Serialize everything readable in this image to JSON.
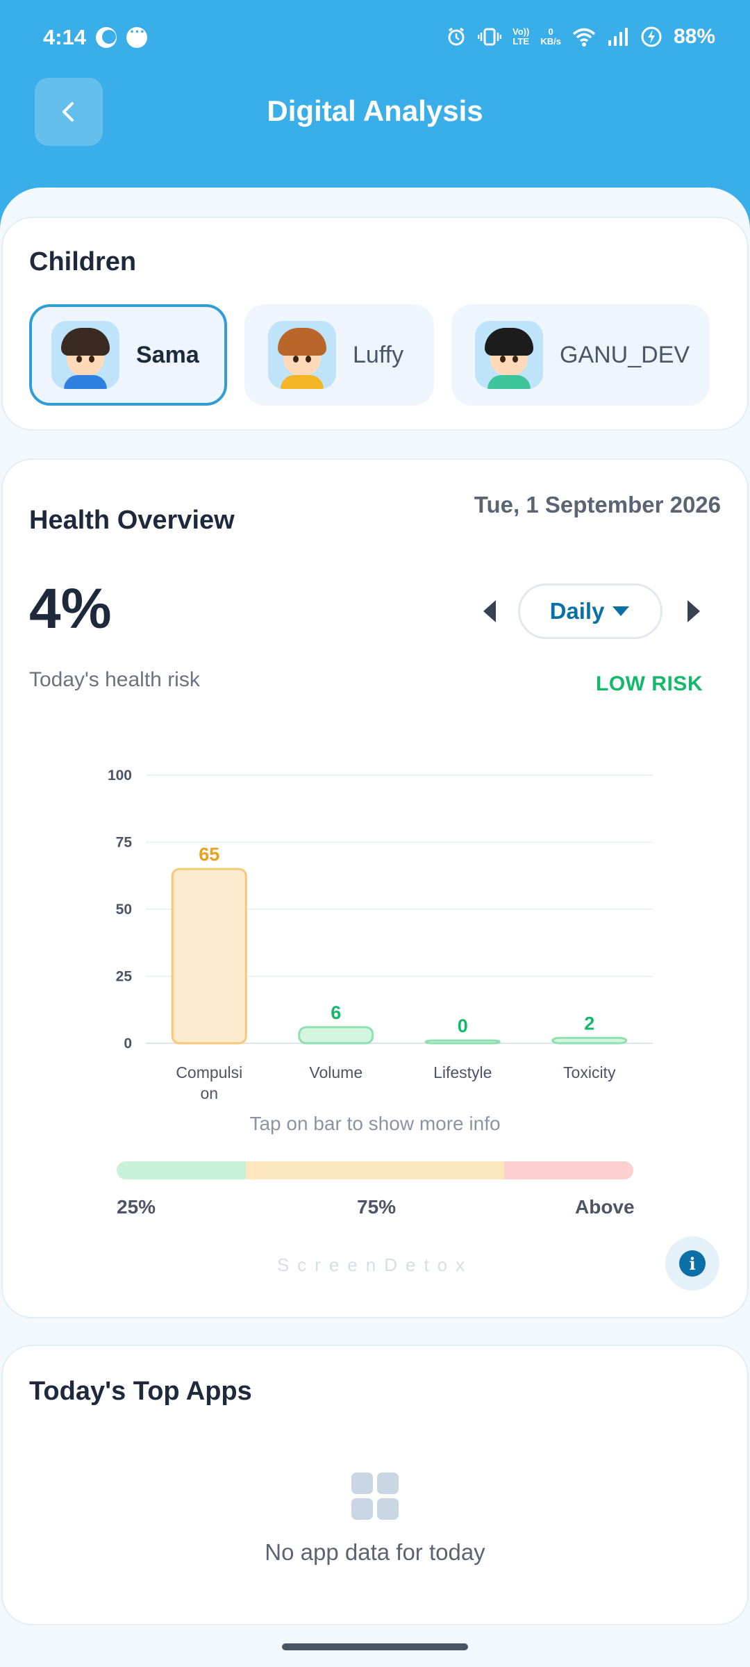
{
  "status_bar": {
    "time": "4:14",
    "network_speed_top": "0",
    "network_speed_bottom": "KB/s",
    "volte_top": "Vo))",
    "volte_bottom": "LTE",
    "battery": "88%"
  },
  "header": {
    "title": "Digital Analysis",
    "back_icon": "chevron-left-icon"
  },
  "children": {
    "heading": "Children",
    "items": [
      {
        "name": "Sama",
        "selected": true
      },
      {
        "name": "Luffy",
        "selected": false
      },
      {
        "name": "GANU_DEV",
        "selected": false
      }
    ]
  },
  "health": {
    "heading": "Health Overview",
    "date": "Tue, 1 September 2026",
    "risk_percent": "4%",
    "risk_subtitle": "Today's health risk",
    "risk_level": "LOW RISK",
    "period": "Daily",
    "hint": "Tap on bar to show more info",
    "scale_labels": [
      "25%",
      "75%",
      "Above"
    ],
    "scale_colors": [
      "#c9f1d8",
      "#fde7be",
      "#fdd0d0"
    ],
    "scale_fractions": [
      0.25,
      0.5,
      0.25
    ],
    "watermark": "ScreenDetox"
  },
  "chart_data": {
    "type": "bar",
    "categories": [
      "Compulsion",
      "Volume",
      "Lifestyle",
      "Toxicity"
    ],
    "category_lines": [
      [
        "Compulsi",
        "on"
      ],
      [
        "Volume"
      ],
      [
        "Lifestyle"
      ],
      [
        "Toxicity"
      ]
    ],
    "values": [
      65,
      6,
      0,
      2
    ],
    "ylim": [
      0,
      100
    ],
    "yticks": [
      0,
      25,
      50,
      75,
      100
    ],
    "grid": true,
    "bar_fill": [
      "#fdebd0",
      "#d3f5e0",
      "#d3f5e0",
      "#d3f5e0"
    ],
    "bar_stroke": [
      "#f8c878",
      "#8fe0b0",
      "#8fe0b0",
      "#8fe0b0"
    ],
    "label_colors": [
      "#e8a21c",
      "#13b86a",
      "#13b86a",
      "#13b86a"
    ]
  },
  "top_apps": {
    "heading": "Today's Top Apps",
    "empty_icon": "grid-apps-icon",
    "empty_text": "No app data for today"
  },
  "colors": {
    "header_bg": "#3aaee8",
    "accent": "#0b6fa8",
    "low_risk": "#14b86a"
  }
}
